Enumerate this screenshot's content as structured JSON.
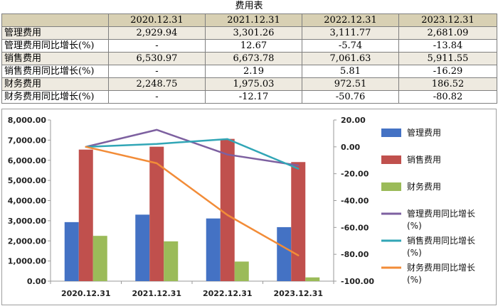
{
  "table": {
    "title": "费用表",
    "columns": [
      "",
      "2020.12.31",
      "2021.12.31",
      "2022.12.31",
      "2023.12.31"
    ],
    "rows": [
      {
        "label": "管理费用",
        "cells": [
          "2,929.94",
          "3,301.26",
          "3,111.77",
          "2,681.09"
        ]
      },
      {
        "label": "管理费用同比增长(%)",
        "cells": [
          "-",
          "12.67",
          "-5.74",
          "-13.84"
        ]
      },
      {
        "label": "销售费用",
        "cells": [
          "6,530.97",
          "6,673.78",
          "7,061.63",
          "5,911.55"
        ]
      },
      {
        "label": "销售费用同比增长(%)",
        "cells": [
          "-",
          "2.19",
          "5.81",
          "-16.29"
        ]
      },
      {
        "label": "财务费用",
        "cells": [
          "2,248.75",
          "1,975.03",
          "972.51",
          "186.52"
        ]
      },
      {
        "label": "财务费用同比增长(%)",
        "cells": [
          "-",
          "-12.17",
          "-50.76",
          "-80.82"
        ]
      }
    ]
  },
  "chart_data": {
    "type": "bar",
    "categories": [
      "2020.12.31",
      "2021.12.31",
      "2022.12.31",
      "2023.12.31"
    ],
    "y_left": {
      "min": 0,
      "max": 8000,
      "step": 1000,
      "ticks": [
        "0.00",
        "1,000.00",
        "2,000.00",
        "3,000.00",
        "4,000.00",
        "5,000.00",
        "6,000.00",
        "7,000.00",
        "8,000.00"
      ]
    },
    "y_right": {
      "min": -100,
      "max": 20,
      "step": 20,
      "ticks": [
        "-100.00",
        "-80.00",
        "-60.00",
        "-40.00",
        "-20.00",
        "0.00",
        "20.00"
      ]
    },
    "grid": false,
    "legend_position": "right",
    "series": [
      {
        "name": "管理费用",
        "kind": "bar",
        "axis": "left",
        "color": "#4472c4",
        "values": [
          2929.94,
          3301.26,
          3111.77,
          2681.09
        ]
      },
      {
        "name": "销售费用",
        "kind": "bar",
        "axis": "left",
        "color": "#c0504d",
        "values": [
          6530.97,
          6673.78,
          7061.63,
          5911.55
        ]
      },
      {
        "name": "财务费用",
        "kind": "bar",
        "axis": "left",
        "color": "#9bbb59",
        "values": [
          2248.75,
          1975.03,
          972.51,
          186.52
        ]
      },
      {
        "name": "管理费用同比增长(%)",
        "kind": "line",
        "axis": "right",
        "color": "#7d60a0",
        "values": [
          0,
          12.67,
          -5.74,
          -13.84
        ]
      },
      {
        "name": "销售费用同比增长(%)",
        "kind": "line",
        "axis": "right",
        "color": "#31a6b6",
        "values": [
          0,
          2.19,
          5.81,
          -16.29
        ]
      },
      {
        "name": "财务费用同比增长(%)",
        "kind": "line",
        "axis": "right",
        "color": "#f28c38",
        "values": [
          0,
          -12.17,
          -50.76,
          -80.82
        ]
      }
    ],
    "legend_lines": [
      [
        "管理费用"
      ],
      [
        "销售费用"
      ],
      [
        "财务费用"
      ],
      [
        "管理费用同比增长",
        "(%)"
      ],
      [
        "销售费用同比增长",
        "(%)"
      ],
      [
        "财务费用同比增长",
        "(%)"
      ]
    ]
  }
}
